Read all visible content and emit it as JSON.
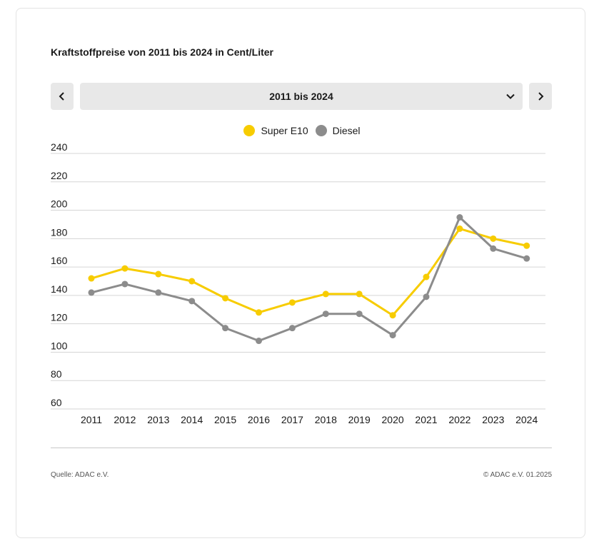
{
  "title": "Kraftstoffpreise von 2011 bis 2024 in Cent/Liter",
  "period_selector": {
    "selected": "2011 bis 2024"
  },
  "icons": {
    "prev": "chevron-left-icon",
    "next": "chevron-right-icon",
    "dropdown": "chevron-down-icon"
  },
  "colors": {
    "super_e10": "#f7cc00",
    "diesel": "#8c8c8c",
    "grid": "#d5d5d5"
  },
  "chart_data": {
    "type": "line",
    "title": "Kraftstoffpreise von 2011 bis 2024 in Cent/Liter",
    "xlabel": "",
    "ylabel": "",
    "categories": [
      "2011",
      "2012",
      "2013",
      "2014",
      "2015",
      "2016",
      "2017",
      "2018",
      "2019",
      "2020",
      "2021",
      "2022",
      "2023",
      "2024"
    ],
    "y_ticks": [
      60,
      80,
      100,
      120,
      140,
      160,
      180,
      200,
      220,
      240
    ],
    "ylim": [
      60,
      240
    ],
    "grid": true,
    "legend_position": "top-center",
    "series": [
      {
        "name": "Super E10",
        "color": "#f7cc00",
        "values": [
          152,
          159,
          155,
          150,
          138,
          128,
          135,
          141,
          141,
          126,
          153,
          187,
          180,
          175
        ]
      },
      {
        "name": "Diesel",
        "color": "#8c8c8c",
        "values": [
          142,
          148,
          142,
          136,
          117,
          108,
          117,
          127,
          127,
          112,
          139,
          195,
          173,
          166
        ]
      }
    ]
  },
  "footer": {
    "source": "Quelle: ADAC e.V.",
    "copyright": "© ADAC e.V. 01.2025"
  }
}
